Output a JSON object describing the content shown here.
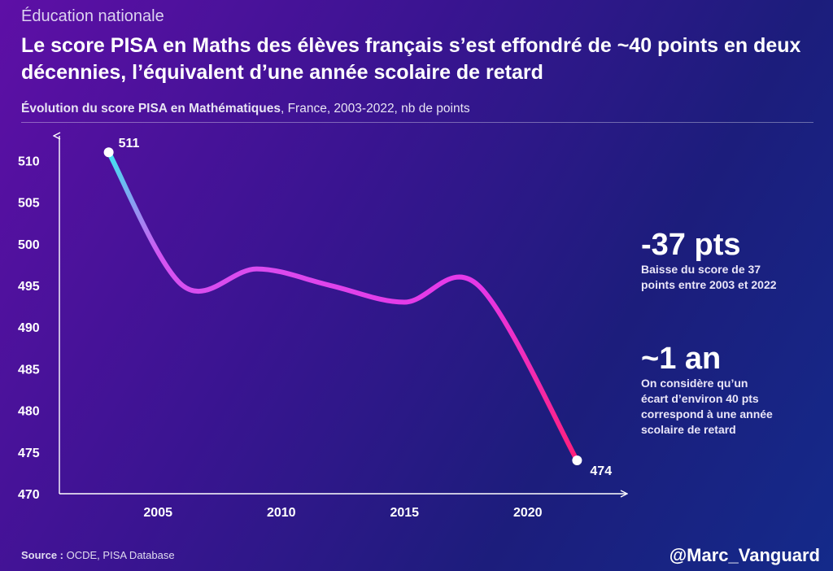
{
  "header": {
    "kicker": "Éducation nationale",
    "title": "Le score PISA en Maths des élèves français s’est effondré de ~40 points en deux décennies, l’équivalent d’une année scolaire de retard",
    "subtitle_bold": "Évolution du score PISA en Mathématiques",
    "subtitle_rest": ", France, 2003-2022, nb de points"
  },
  "chart_data": {
    "type": "line",
    "title": "Évolution du score PISA en Mathématiques",
    "x_ticks": [
      2005,
      2010,
      2015,
      2020
    ],
    "y_ticks": [
      470,
      475,
      480,
      485,
      490,
      495,
      500,
      505,
      510
    ],
    "xlim": [
      2001,
      2024
    ],
    "ylim": [
      470,
      512
    ],
    "series": [
      {
        "x": [
          2003,
          2006,
          2009,
          2012,
          2015,
          2018,
          2022
        ],
        "y": [
          511,
          495,
          497,
          495,
          493,
          495,
          474
        ]
      }
    ],
    "point_labels": [
      {
        "x": 2003,
        "y": 511,
        "text": "511"
      },
      {
        "x": 2022,
        "y": 474,
        "text": "474"
      }
    ],
    "colors": {
      "start": "#3ee6f0",
      "mid": "#d455f2",
      "upper": "#e637e6",
      "end": "#ff1f7a"
    },
    "grid": false,
    "legend": "none"
  },
  "stats": [
    {
      "big": "-37 pts",
      "lines": [
        "Baisse du score de 37",
        "points entre 2003 et 2022"
      ]
    },
    {
      "big": "~1 an",
      "lines": [
        "On considère qu’un",
        "écart d’environ 40 pts",
        "correspond à une année",
        "scolaire de retard"
      ]
    }
  ],
  "footer": {
    "source_label": "Source :",
    "source_text": " OCDE, PISA Database",
    "handle": "@Marc_Vanguard"
  }
}
